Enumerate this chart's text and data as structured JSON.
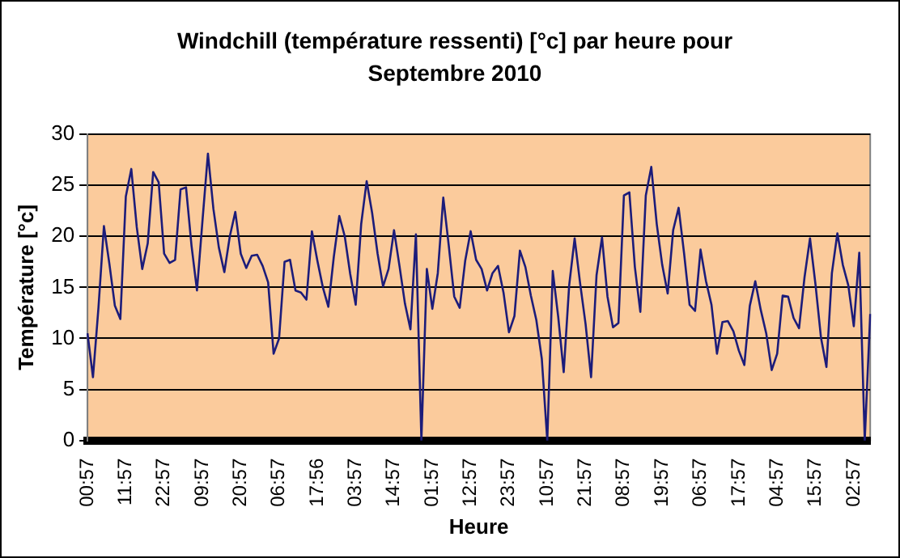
{
  "chart_data": {
    "type": "line",
    "title": "Windchill (température ressenti) [°c] par heure pour Septembre 2010",
    "xlabel": "Heure",
    "ylabel": "Température [°c]",
    "categories": [
      "00:57",
      null,
      null,
      null,
      null,
      null,
      null,
      "11:57",
      null,
      null,
      null,
      null,
      null,
      null,
      "22:57",
      null,
      null,
      null,
      null,
      null,
      null,
      "09:57",
      null,
      null,
      null,
      null,
      null,
      null,
      "20:57",
      null,
      null,
      null,
      null,
      null,
      null,
      "06:57",
      null,
      null,
      null,
      null,
      null,
      null,
      "17:56",
      null,
      null,
      null,
      null,
      null,
      null,
      "03:57",
      null,
      null,
      null,
      null,
      null,
      null,
      "14:57",
      null,
      null,
      null,
      null,
      null,
      null,
      "01:57",
      null,
      null,
      null,
      null,
      null,
      null,
      "12:57",
      null,
      null,
      null,
      null,
      null,
      null,
      "23:57",
      null,
      null,
      null,
      null,
      null,
      null,
      "10:57",
      null,
      null,
      null,
      null,
      null,
      null,
      "21:57",
      null,
      null,
      null,
      null,
      null,
      null,
      "08:57",
      null,
      null,
      null,
      null,
      null,
      null,
      "19:57",
      null,
      null,
      null,
      null,
      null,
      null,
      "06:57",
      null,
      null,
      null,
      null,
      null,
      null,
      "17:57",
      null,
      null,
      null,
      null,
      null,
      null,
      "04:57",
      null,
      null,
      null,
      null,
      null,
      null,
      "15:57",
      null,
      null,
      null,
      null,
      null,
      null,
      "02:57",
      null,
      null,
      null
    ],
    "ylim": [
      0,
      30
    ],
    "yticks": [
      0,
      5,
      10,
      15,
      20,
      25,
      30
    ],
    "grid": "y",
    "legend": false,
    "marker": "none",
    "line_style": "solid",
    "series": [
      {
        "color": "#1c1c7a",
        "values": [
          10.5,
          6.2,
          13,
          21,
          17.3,
          13.2,
          11.9,
          23.9,
          26.6,
          20.9,
          16.8,
          19.3,
          26.3,
          25.3,
          18.3,
          17.4,
          17.7,
          24.6,
          24.8,
          19.1,
          14.7,
          21.5,
          28.1,
          22.7,
          18.9,
          16.5,
          20,
          22.4,
          18.3,
          16.9,
          18.1,
          18.2,
          17.1,
          15.5,
          8.5,
          10,
          17.5,
          17.7,
          14.7,
          14.5,
          13.8,
          20.5,
          17.6,
          15,
          13.1,
          18,
          22,
          20,
          16.3,
          13.3,
          21.2,
          25.4,
          22.3,
          18.3,
          15.1,
          16.8,
          20.6,
          17.1,
          13.4,
          10.9,
          20.2,
          0,
          16.8,
          12.9,
          16.4,
          23.8,
          19.1,
          14.1,
          13,
          17.6,
          20.5,
          17.7,
          16.8,
          14.7,
          16.4,
          17.1,
          14.5,
          10.6,
          12.2,
          18.6,
          17,
          14.2,
          11.8,
          8,
          0,
          16.6,
          12.1,
          6.7,
          15.2,
          19.8,
          15.4,
          11.4,
          6.2,
          16.2,
          19.9,
          14.1,
          11.1,
          11.5,
          24,
          24.3,
          17,
          12.6,
          24,
          26.8,
          21.2,
          17.2,
          14.4,
          20.6,
          22.8,
          18.3,
          13.3,
          12.7,
          18.7,
          15.6,
          13.3,
          8.5,
          11.6,
          11.7,
          10.7,
          8.8,
          7.4,
          13.2,
          15.6,
          12.8,
          10.5,
          6.9,
          8.5,
          14.2,
          14.1,
          12,
          11,
          16,
          19.8,
          15.3,
          10.1,
          7.2,
          16.4,
          20.3,
          17.2,
          15.2,
          11.2,
          18.4,
          0,
          12.4
        ]
      }
    ]
  }
}
